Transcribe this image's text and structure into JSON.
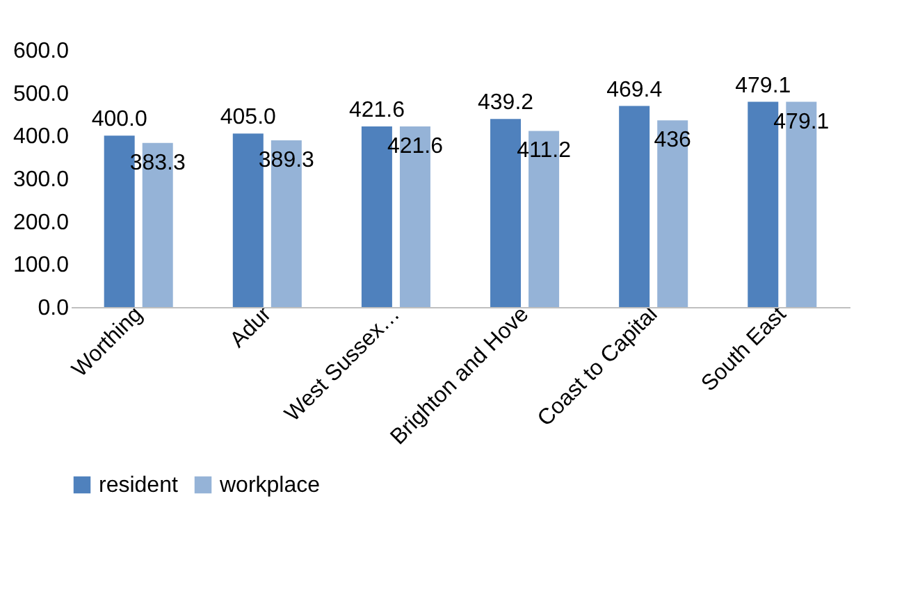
{
  "chart_data": {
    "type": "bar",
    "categories": [
      "Worthing",
      "Adur",
      "West Sussex…",
      "Brighton and Hove",
      "Coast to Capital",
      "South East"
    ],
    "series": [
      {
        "name": "resident",
        "color": "#4f81bd",
        "values": [
          400.0,
          405.0,
          421.6,
          439.2,
          469.4,
          479.1
        ],
        "value_labels": [
          "400.0",
          "405.0",
          "421.6",
          "439.2",
          "469.4",
          "479.1"
        ]
      },
      {
        "name": "workplace",
        "color": "#95b3d7",
        "values": [
          383.3,
          389.3,
          421.6,
          411.2,
          436,
          479.1
        ],
        "value_labels": [
          "383.3",
          "389.3",
          "421.6",
          "411.2",
          "436",
          "479.1"
        ]
      }
    ],
    "ylim": [
      0,
      600
    ],
    "yticks": [
      {
        "value": 0,
        "label": "0.0"
      },
      {
        "value": 100,
        "label": "100.0"
      },
      {
        "value": 200,
        "label": "200.0"
      },
      {
        "value": 300,
        "label": "300.0"
      },
      {
        "value": 400,
        "label": "400.0"
      },
      {
        "value": 500,
        "label": "500.0"
      },
      {
        "value": 600,
        "label": "600.0"
      }
    ],
    "grid": false,
    "legend": "bottom"
  }
}
